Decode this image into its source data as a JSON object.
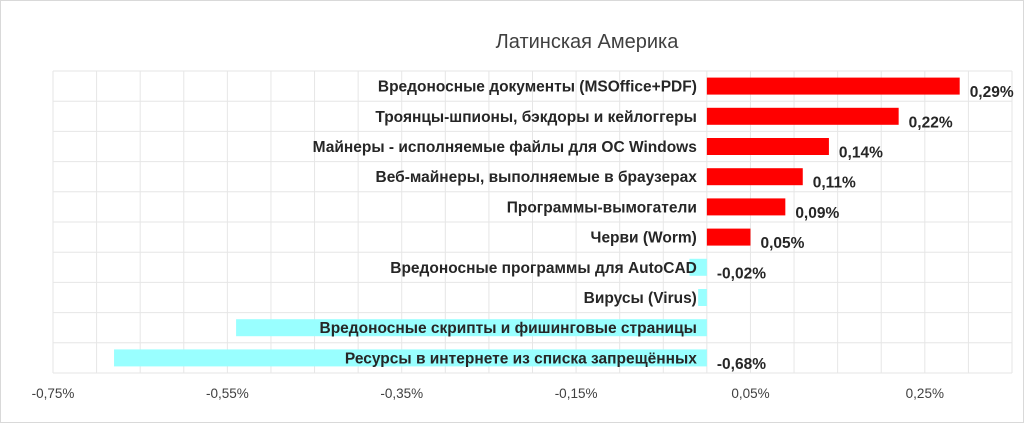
{
  "chart_data": {
    "type": "bar",
    "orientation": "horizontal",
    "title": "Латинская Америка",
    "categories": [
      "Вредоносные документы (MSOffice+PDF)",
      "Троянцы-шпионы, бэкдоры и кейлоггеры",
      "Майнеры - исполняемые файлы для ОС Windows",
      "Веб-майнеры, выполняемые в браузерах",
      "Программы-вымогатели",
      "Черви (Worm)",
      "Вредоносные программы для AutoCAD",
      "Вирусы (Virus)",
      "Вредоносные скрипты и фишинговые страницы",
      "Ресурсы в интернете из списка запрещённых"
    ],
    "values": [
      0.29,
      0.22,
      0.14,
      0.11,
      0.09,
      0.05,
      -0.02,
      -0.01,
      -0.54,
      -0.68
    ],
    "data_labels": [
      "0,29%",
      "0,22%",
      "0,14%",
      "0,11%",
      "0,09%",
      "0,05%",
      "-0,02%",
      "",
      "",
      "-0,68%"
    ],
    "xlim": [
      -0.75,
      0.35
    ],
    "xticks": [
      -0.75,
      -0.55,
      -0.35,
      -0.15,
      0.05,
      0.25
    ],
    "xtick_labels": [
      "-0,75%",
      "-0,55%",
      "-0,35%",
      "-0,15%",
      "0,05%",
      "0,25%"
    ],
    "xlabel": "",
    "ylabel": "",
    "grid": true,
    "legend": false,
    "positive_color": "#ff0000",
    "negative_color": "#99ffff"
  }
}
